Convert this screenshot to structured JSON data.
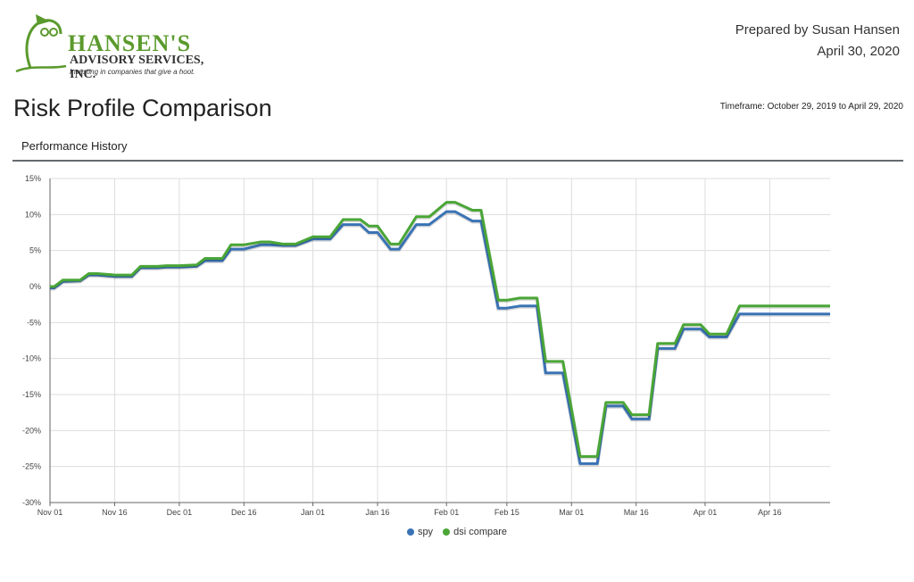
{
  "logo": {
    "name": "HANSEN'S",
    "subname": "ADVISORY SERVICES, INC.",
    "tagline": "Investing in companies that give a hoot."
  },
  "header": {
    "prepared_by": "Prepared by Susan Hansen",
    "date": "April 30, 2020"
  },
  "title": "Risk Profile Comparison",
  "timeframe": "Timeframe: October 29, 2019 to April 29, 2020",
  "subtitle": "Performance History",
  "colors": {
    "spy": "#3a73b5",
    "dsi": "#4aa637",
    "grid": "#dddddd",
    "axis": "#666666"
  },
  "chart_data": {
    "type": "line",
    "title": "",
    "xlabel": "",
    "ylabel": "",
    "ylim": [
      -30,
      15
    ],
    "y_ticks": [
      15,
      10,
      5,
      0,
      -5,
      -10,
      -15,
      -20,
      -25,
      -30
    ],
    "y_tick_labels": [
      "15%",
      "10%",
      "5%",
      "0%",
      "-5%",
      "-10%",
      "-15%",
      "-20%",
      "-25%",
      "-30%"
    ],
    "x_ticks": [
      "Nov 01",
      "Nov 16",
      "Dec 01",
      "Dec 16",
      "Jan 01",
      "Jan 16",
      "Feb 01",
      "Feb 15",
      "Mar 01",
      "Mar 16",
      "Apr 01",
      "Apr 16"
    ],
    "x": [
      "Nov 01",
      "Nov 02",
      "Nov 04",
      "Nov 08",
      "Nov 10",
      "Nov 12",
      "Nov 16",
      "Nov 20",
      "Nov 22",
      "Nov 26",
      "Nov 28",
      "Dec 01",
      "Dec 05",
      "Dec 07",
      "Dec 11",
      "Dec 13",
      "Dec 16",
      "Dec 20",
      "Dec 22",
      "Dec 25",
      "Dec 28",
      "Jan 01",
      "Jan 05",
      "Jan 08",
      "Jan 12",
      "Jan 14",
      "Jan 16",
      "Jan 19",
      "Jan 21",
      "Jan 25",
      "Jan 28",
      "Feb 01",
      "Feb 03",
      "Feb 07",
      "Feb 09",
      "Feb 13",
      "Feb 15",
      "Feb 18",
      "Feb 22",
      "Feb 24",
      "Feb 28",
      "Mar 03",
      "Mar 07",
      "Mar 09",
      "Mar 13",
      "Mar 15",
      "Mar 19",
      "Mar 21",
      "Mar 25",
      "Mar 27",
      "Mar 31",
      "Apr 02",
      "Apr 06",
      "Apr 09",
      "Apr 13",
      "Apr 15",
      "Apr 19",
      "Apr 21",
      "Apr 25",
      "Apr 27",
      "Apr 30"
    ],
    "legend_position": "bottom",
    "series": [
      {
        "name": "spy",
        "color": "#3a73b5",
        "values": [
          -0.2,
          -0.2,
          0.7,
          0.8,
          1.6,
          1.6,
          1.4,
          1.4,
          2.6,
          2.6,
          2.7,
          2.7,
          2.8,
          3.6,
          3.6,
          5.2,
          5.2,
          5.8,
          5.8,
          5.7,
          5.7,
          6.6,
          6.6,
          8.6,
          8.6,
          7.5,
          7.5,
          5.2,
          5.2,
          8.6,
          8.6,
          10.4,
          10.4,
          9.1,
          9.1,
          -3.0,
          -3.0,
          -2.7,
          -2.7,
          -12.0,
          -12.0,
          -24.6,
          -24.6,
          -16.6,
          -16.6,
          -18.4,
          -18.4,
          -8.6,
          -8.6,
          -5.9,
          -5.9,
          -7.0,
          -7.0,
          -3.8,
          -3.8,
          -3.8,
          -3.8,
          -3.8,
          -3.8,
          -3.8,
          -3.8
        ]
      },
      {
        "name": "dsi compare",
        "color": "#4aa637",
        "values": [
          0.0,
          0.0,
          0.9,
          0.9,
          1.8,
          1.8,
          1.6,
          1.6,
          2.8,
          2.8,
          2.9,
          2.9,
          3.0,
          3.9,
          3.9,
          5.8,
          5.8,
          6.2,
          6.2,
          5.9,
          5.9,
          6.9,
          6.9,
          9.3,
          9.3,
          8.4,
          8.4,
          5.9,
          5.9,
          9.7,
          9.7,
          11.7,
          11.7,
          10.6,
          10.6,
          -1.9,
          -1.9,
          -1.6,
          -1.6,
          -10.4,
          -10.4,
          -23.6,
          -23.6,
          -16.1,
          -16.1,
          -17.8,
          -17.8,
          -7.9,
          -7.9,
          -5.3,
          -5.3,
          -6.6,
          -6.6,
          -2.7,
          -2.7,
          -2.7,
          -2.7,
          -2.7,
          -2.7,
          -2.7,
          -2.7
        ]
      }
    ]
  }
}
